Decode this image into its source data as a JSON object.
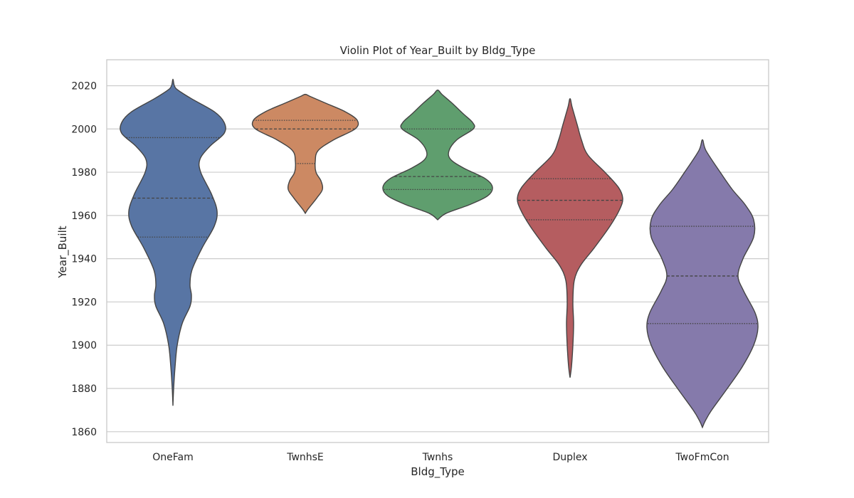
{
  "chart_data": {
    "type": "violin",
    "title": "Violin Plot of Year_Built by Bldg_Type",
    "xlabel": "Bldg_Type",
    "ylabel": "Year_Built",
    "ylim": [
      1855,
      2032
    ],
    "yticks": [
      1860,
      1880,
      1900,
      1920,
      1940,
      1960,
      1980,
      2000,
      2020
    ],
    "grid": true,
    "legend": "none",
    "categories": [
      "OneFam",
      "TwnhsE",
      "Twnhs",
      "Duplex",
      "TwoFmCon"
    ],
    "colors": [
      "#5875a4",
      "#cc8963",
      "#5f9e6e",
      "#b55d60",
      "#857aab"
    ],
    "series": [
      {
        "category": "OneFam",
        "min": 1872,
        "max": 2023,
        "quartiles": [
          1950,
          1968,
          1996
        ],
        "density": [
          [
            1872,
            0.0
          ],
          [
            1880,
            0.01
          ],
          [
            1890,
            0.03
          ],
          [
            1900,
            0.06
          ],
          [
            1910,
            0.13
          ],
          [
            1918,
            0.24
          ],
          [
            1923,
            0.26
          ],
          [
            1928,
            0.24
          ],
          [
            1935,
            0.27
          ],
          [
            1945,
            0.41
          ],
          [
            1955,
            0.58
          ],
          [
            1962,
            0.62
          ],
          [
            1970,
            0.54
          ],
          [
            1980,
            0.39
          ],
          [
            1986,
            0.38
          ],
          [
            1992,
            0.52
          ],
          [
            1998,
            0.72
          ],
          [
            2003,
            0.72
          ],
          [
            2008,
            0.58
          ],
          [
            2014,
            0.26
          ],
          [
            2018,
            0.07
          ],
          [
            2020,
            0.02
          ],
          [
            2023,
            0.0
          ]
        ]
      },
      {
        "category": "TwnhsE",
        "min": 1961,
        "max": 2016,
        "quartiles": [
          1984,
          2000,
          2004
        ],
        "density": [
          [
            1961,
            0.0
          ],
          [
            1963,
            0.04
          ],
          [
            1968,
            0.16
          ],
          [
            1972,
            0.24
          ],
          [
            1976,
            0.22
          ],
          [
            1980,
            0.15
          ],
          [
            1985,
            0.14
          ],
          [
            1990,
            0.18
          ],
          [
            1995,
            0.4
          ],
          [
            2000,
            0.7
          ],
          [
            2004,
            0.73
          ],
          [
            2008,
            0.56
          ],
          [
            2012,
            0.28
          ],
          [
            2015,
            0.07
          ],
          [
            2016,
            0.0
          ]
        ]
      },
      {
        "category": "Twnhs",
        "min": 1958,
        "max": 2018,
        "quartiles": [
          1972,
          1978,
          2000
        ],
        "density": [
          [
            1958,
            0.0
          ],
          [
            1961,
            0.12
          ],
          [
            1965,
            0.45
          ],
          [
            1969,
            0.7
          ],
          [
            1973,
            0.77
          ],
          [
            1977,
            0.67
          ],
          [
            1982,
            0.36
          ],
          [
            1986,
            0.18
          ],
          [
            1990,
            0.16
          ],
          [
            1995,
            0.27
          ],
          [
            2000,
            0.5
          ],
          [
            2003,
            0.49
          ],
          [
            2007,
            0.36
          ],
          [
            2012,
            0.2
          ],
          [
            2016,
            0.06
          ],
          [
            2018,
            0.0
          ]
        ]
      },
      {
        "category": "Duplex",
        "min": 1885,
        "max": 2014,
        "quartiles": [
          1958,
          1967,
          1977
        ],
        "density": [
          [
            1885,
            0.0
          ],
          [
            1890,
            0.02
          ],
          [
            1900,
            0.04
          ],
          [
            1910,
            0.05
          ],
          [
            1920,
            0.04
          ],
          [
            1930,
            0.06
          ],
          [
            1937,
            0.15
          ],
          [
            1945,
            0.34
          ],
          [
            1955,
            0.56
          ],
          [
            1963,
            0.7
          ],
          [
            1968,
            0.74
          ],
          [
            1973,
            0.68
          ],
          [
            1980,
            0.49
          ],
          [
            1988,
            0.25
          ],
          [
            1995,
            0.16
          ],
          [
            2002,
            0.1
          ],
          [
            2010,
            0.03
          ],
          [
            2014,
            0.0
          ]
        ]
      },
      {
        "category": "TwoFmCon",
        "min": 1862,
        "max": 1995,
        "quartiles": [
          1910,
          1932,
          1955
        ],
        "density": [
          [
            1862,
            0.0
          ],
          [
            1865,
            0.04
          ],
          [
            1870,
            0.13
          ],
          [
            1880,
            0.35
          ],
          [
            1890,
            0.56
          ],
          [
            1900,
            0.72
          ],
          [
            1908,
            0.78
          ],
          [
            1915,
            0.74
          ],
          [
            1925,
            0.58
          ],
          [
            1932,
            0.5
          ],
          [
            1940,
            0.57
          ],
          [
            1950,
            0.72
          ],
          [
            1958,
            0.72
          ],
          [
            1965,
            0.6
          ],
          [
            1972,
            0.42
          ],
          [
            1980,
            0.25
          ],
          [
            1990,
            0.05
          ],
          [
            1995,
            0.0
          ]
        ]
      }
    ]
  }
}
